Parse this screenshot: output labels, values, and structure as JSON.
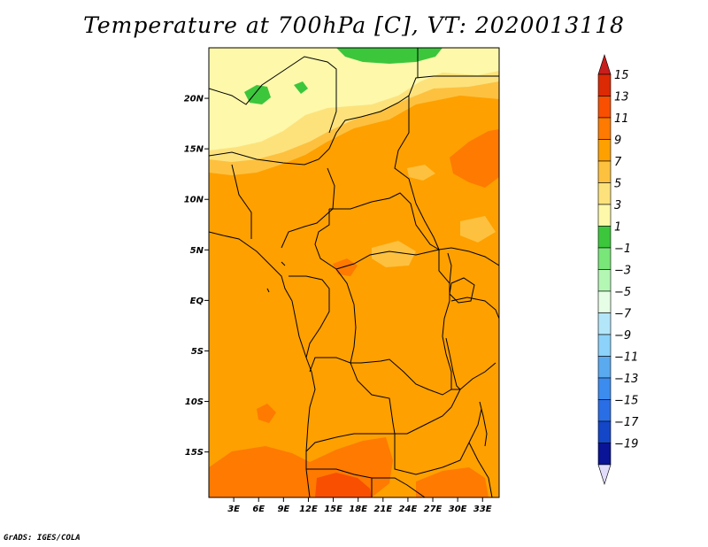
{
  "title": "Temperature at 700hPa [C], VT: 2020013118",
  "credit": "GrADS: IGES/COLA",
  "map": {
    "lat_range": [
      -19.5,
      25
    ],
    "lon_range": [
      0,
      35
    ],
    "lat_ticks": [
      {
        "value": 20,
        "label": "20N"
      },
      {
        "value": 15,
        "label": "15N"
      },
      {
        "value": 10,
        "label": "10N"
      },
      {
        "value": 5,
        "label": "5N"
      },
      {
        "value": 0,
        "label": "EQ"
      },
      {
        "value": -5,
        "label": "5S"
      },
      {
        "value": -10,
        "label": "10S"
      },
      {
        "value": -15,
        "label": "15S"
      }
    ],
    "lon_ticks": [
      {
        "value": 3,
        "label": "3E"
      },
      {
        "value": 6,
        "label": "6E"
      },
      {
        "value": 9,
        "label": "9E"
      },
      {
        "value": 12,
        "label": "12E"
      },
      {
        "value": 15,
        "label": "15E"
      },
      {
        "value": 18,
        "label": "18E"
      },
      {
        "value": 21,
        "label": "21E"
      },
      {
        "value": 24,
        "label": "24E"
      },
      {
        "value": 27,
        "label": "27E"
      },
      {
        "value": 30,
        "label": "30E"
      },
      {
        "value": 33,
        "label": "33E"
      }
    ],
    "background_color": "#fea000"
  },
  "colorbar": {
    "levels": [
      {
        "label": "15",
        "color": "#dc2a04"
      },
      {
        "label": "13",
        "color": "#f84f01"
      },
      {
        "label": "11",
        "color": "#fe7a00"
      },
      {
        "label": "9",
        "color": "#fea000"
      },
      {
        "label": "7",
        "color": "#fdc13f"
      },
      {
        "label": "5",
        "color": "#fde27c"
      },
      {
        "label": "3",
        "color": "#fdf8aa"
      },
      {
        "label": "1",
        "color": "#3cc63c"
      },
      {
        "label": "-1",
        "color": "#78e678"
      },
      {
        "label": "-3",
        "color": "#b4f6b4"
      },
      {
        "label": "-5",
        "color": "#e6fee6"
      },
      {
        "label": "-7",
        "color": "#b4e6fa"
      },
      {
        "label": "-9",
        "color": "#8cd2fa"
      },
      {
        "label": "-11",
        "color": "#5aaaf0"
      },
      {
        "label": "-13",
        "color": "#3c8cf0"
      },
      {
        "label": "-15",
        "color": "#2a6ee6"
      },
      {
        "label": "-17",
        "color": "#1446c8"
      },
      {
        "label": "-19",
        "color": "#0a1496"
      }
    ],
    "top_arrow_color": "#c81e1e",
    "bottom_arrow_color": "#e1dcfa"
  }
}
